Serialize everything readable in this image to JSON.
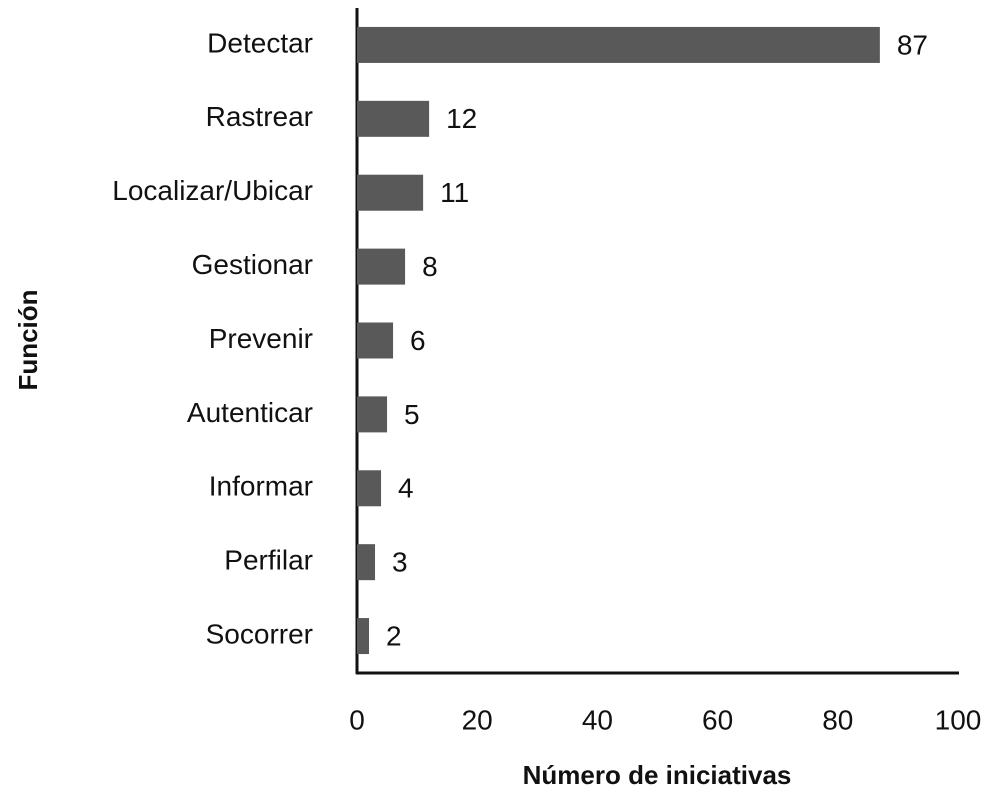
{
  "chart_data": {
    "type": "bar",
    "orientation": "horizontal",
    "x_axis_label": "Número de iniciativas",
    "y_axis_label": "Función",
    "categories": [
      "Detectar",
      "Rastrear",
      "Localizar/Ubicar",
      "Gestionar",
      "Prevenir",
      "Autenticar",
      "Informar",
      "Perfilar",
      "Socorrer"
    ],
    "values": [
      87,
      12,
      11,
      8,
      6,
      5,
      4,
      3,
      2
    ],
    "color": "#595959",
    "xlim": [
      0,
      100
    ],
    "xticks": [
      0,
      20,
      40,
      60,
      80,
      100
    ],
    "grid": false
  }
}
